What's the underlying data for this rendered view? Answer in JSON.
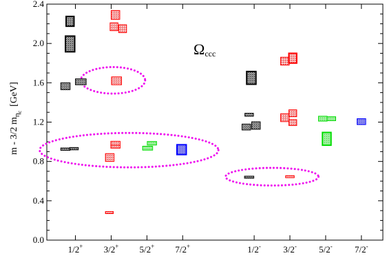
{
  "chart_data": {
    "type": "scatter",
    "title": "Ω",
    "title_subscript": "ccc",
    "xlabel": "",
    "ylabel": "m - 3/2 m",
    "ylabel_subscript": "η",
    "ylabel_subsubscript": "c",
    "ylabel_unit": "[GeV]",
    "ylim": [
      0.0,
      2.4
    ],
    "yticks": [
      "0.0",
      "0.4",
      "0.8",
      "1.2",
      "1.6",
      "2.0",
      "2.4"
    ],
    "grid": false,
    "legend": "none",
    "categories": [
      {
        "base": "1/2",
        "parity": "+",
        "x": 1
      },
      {
        "base": "3/2",
        "parity": "+",
        "x": 2
      },
      {
        "base": "5/2",
        "parity": "+",
        "x": 3
      },
      {
        "base": "7/2",
        "parity": "+",
        "x": 4
      },
      {
        "base": "1/2",
        "parity": "-",
        "x": 6
      },
      {
        "base": "3/2",
        "parity": "-",
        "x": 7
      },
      {
        "base": "5/2",
        "parity": "-",
        "x": 8
      },
      {
        "base": "7/2",
        "parity": "-",
        "x": 9
      }
    ],
    "colors": {
      "black": {
        "fill": "#8c8c8c",
        "stroke": "#000000"
      },
      "red": {
        "fill": "#f39090",
        "stroke": "#ff0000"
      },
      "green": {
        "fill": "#90ee90",
        "stroke": "#00dd00"
      },
      "blue": {
        "fill": "#8c8cf5",
        "stroke": "#0000ff"
      }
    },
    "ellipse_color": "#ee11ee",
    "levels": [
      {
        "x": 0.85,
        "w": 0.22,
        "y": 2.225,
        "e": 0.05,
        "color": "black"
      },
      {
        "x": 0.85,
        "w": 0.26,
        "y": 1.995,
        "e": 0.08,
        "color": "black"
      },
      {
        "x": 0.72,
        "w": 0.26,
        "y": 1.565,
        "e": 0.035,
        "color": "black"
      },
      {
        "x": 1.15,
        "w": 0.3,
        "y": 1.61,
        "e": 0.03,
        "color": "black"
      },
      {
        "x": 0.72,
        "w": 0.26,
        "y": 0.925,
        "e": 0.012,
        "color": "black"
      },
      {
        "x": 0.96,
        "w": 0.24,
        "y": 0.93,
        "e": 0.012,
        "color": "black"
      },
      {
        "x": 2.12,
        "w": 0.24,
        "y": 2.29,
        "e": 0.045,
        "color": "red"
      },
      {
        "x": 2.08,
        "w": 0.22,
        "y": 2.17,
        "e": 0.04,
        "color": "red"
      },
      {
        "x": 2.32,
        "w": 0.22,
        "y": 2.15,
        "e": 0.04,
        "color": "red"
      },
      {
        "x": 2.15,
        "w": 0.28,
        "y": 1.62,
        "e": 0.04,
        "color": "red"
      },
      {
        "x": 2.12,
        "w": 0.26,
        "y": 0.985,
        "e": 0.02,
        "color": "red"
      },
      {
        "x": 2.12,
        "w": 0.26,
        "y": 0.95,
        "e": 0.015,
        "color": "red"
      },
      {
        "x": 1.96,
        "w": 0.24,
        "y": 0.84,
        "e": 0.04,
        "color": "red"
      },
      {
        "x": 1.95,
        "w": 0.22,
        "y": 0.28,
        "e": 0.006,
        "color": "red"
      },
      {
        "x": 3.14,
        "w": 0.26,
        "y": 0.985,
        "e": 0.018,
        "color": "green"
      },
      {
        "x": 3.02,
        "w": 0.28,
        "y": 0.935,
        "e": 0.02,
        "color": "green"
      },
      {
        "x": 3.97,
        "w": 0.26,
        "y": 0.92,
        "e": 0.05,
        "color": "blue"
      },
      {
        "x": 5.92,
        "w": 0.26,
        "y": 1.65,
        "e": 0.065,
        "color": "black"
      },
      {
        "x": 5.86,
        "w": 0.24,
        "y": 1.275,
        "e": 0.015,
        "color": "black"
      },
      {
        "x": 5.78,
        "w": 0.24,
        "y": 1.15,
        "e": 0.03,
        "color": "black"
      },
      {
        "x": 6.05,
        "w": 0.24,
        "y": 1.165,
        "e": 0.038,
        "color": "black"
      },
      {
        "x": 5.86,
        "w": 0.26,
        "y": 0.64,
        "e": 0.006,
        "color": "black"
      },
      {
        "x": 6.86,
        "w": 0.24,
        "y": 1.82,
        "e": 0.04,
        "color": "red"
      },
      {
        "x": 7.08,
        "w": 0.22,
        "y": 1.85,
        "e": 0.05,
        "color": "red"
      },
      {
        "x": 6.86,
        "w": 0.24,
        "y": 1.245,
        "e": 0.04,
        "color": "red"
      },
      {
        "x": 7.08,
        "w": 0.22,
        "y": 1.29,
        "e": 0.035,
        "color": "red"
      },
      {
        "x": 7.08,
        "w": 0.22,
        "y": 1.195,
        "e": 0.03,
        "color": "red"
      },
      {
        "x": 7.0,
        "w": 0.24,
        "y": 0.645,
        "e": 0.008,
        "color": "red"
      },
      {
        "x": 7.92,
        "w": 0.24,
        "y": 1.235,
        "e": 0.025,
        "color": "green"
      },
      {
        "x": 8.16,
        "w": 0.24,
        "y": 1.235,
        "e": 0.02,
        "color": "green"
      },
      {
        "x": 8.03,
        "w": 0.24,
        "y": 1.03,
        "e": 0.065,
        "color": "green"
      },
      {
        "x": 9.0,
        "w": 0.24,
        "y": 1.205,
        "e": 0.03,
        "color": "blue"
      }
    ],
    "ellipses": [
      {
        "cx": 2.05,
        "cy": 1.625,
        "rx": 0.9,
        "ry": 0.135
      },
      {
        "cx": 2.5,
        "cy": 0.915,
        "rx": 2.5,
        "ry": 0.175
      },
      {
        "cx": 6.5,
        "cy": 0.645,
        "rx": 1.3,
        "ry": 0.09
      }
    ],
    "xlim": [
      0.2,
      9.6
    ]
  }
}
